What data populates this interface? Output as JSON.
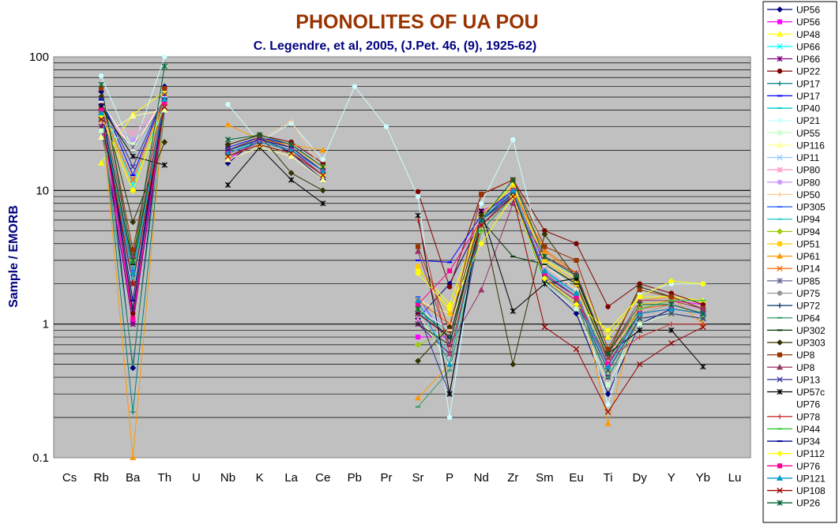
{
  "chart_data": {
    "type": "line",
    "title": "PHONOLITES OF UA POU",
    "subtitle": "C. Legendre, et al, 2005, (J.Pet. 46, (9), 1925-62)",
    "xlabel": "",
    "ylabel": "Sample / EMORB",
    "y_scale": "log",
    "ylim": [
      0.1,
      100
    ],
    "y_ticks": [
      "0.1",
      "1",
      "10",
      "100"
    ],
    "grid": true,
    "legend_position": "right",
    "categories": [
      "Cs",
      "Rb",
      "Ba",
      "Th",
      "U",
      "Nb",
      "K",
      "La",
      "Ce",
      "Pb",
      "Pr",
      "Sr",
      "P",
      "Nd",
      "Zr",
      "Sm",
      "Eu",
      "Ti",
      "Dy",
      "Y",
      "Yb",
      "Lu"
    ],
    "series": [
      {
        "name": "UP56",
        "color": "#000080",
        "marker": "diamond",
        "values": [
          null,
          55,
          0.47,
          60,
          null,
          16,
          25,
          19,
          12,
          null,
          null,
          1.1,
          2.0,
          6.0,
          10,
          2.0,
          1.2,
          0.3,
          1.0,
          1.3,
          1.2,
          null
        ]
      },
      {
        "name": "UP56",
        "color": "#ff00ff",
        "marker": "square",
        "values": [
          null,
          38,
          1.05,
          50,
          null,
          17,
          24,
          20,
          13,
          null,
          null,
          0.8,
          0.8,
          7,
          9,
          2.2,
          1.5,
          0.5,
          1.3,
          1.5,
          1.4,
          null
        ]
      },
      {
        "name": "UP48",
        "color": "#ffff00",
        "marker": "triangle",
        "values": [
          null,
          16,
          37,
          55,
          null,
          19,
          24,
          21,
          14,
          null,
          null,
          2.6,
          1.4,
          6.5,
          11,
          3.0,
          2.2,
          0.8,
          1.6,
          1.6,
          1.5,
          null
        ]
      },
      {
        "name": "UP66",
        "color": "#00ffff",
        "marker": "x",
        "values": [
          null,
          45,
          11,
          45,
          null,
          20,
          25,
          22,
          15,
          null,
          null,
          1.5,
          1.0,
          6,
          10,
          2.5,
          1.6,
          0.45,
          1.2,
          1.3,
          1.2,
          null
        ]
      },
      {
        "name": "UP66",
        "color": "#800080",
        "marker": "star",
        "values": [
          null,
          30,
          1.0,
          42,
          null,
          18,
          23,
          20,
          13,
          null,
          null,
          1.0,
          0.6,
          5,
          9,
          2.1,
          1.4,
          0.4,
          1.1,
          1.2,
          1.1,
          null
        ]
      },
      {
        "name": "UP22",
        "color": "#800000",
        "marker": "circle",
        "values": [
          null,
          50,
          1.2,
          58,
          null,
          22,
          26,
          23,
          16,
          null,
          null,
          9.8,
          1.9,
          9.3,
          12,
          5.0,
          4.0,
          1.35,
          2.0,
          1.7,
          1.4,
          null
        ]
      },
      {
        "name": "UP17",
        "color": "#008080",
        "marker": "plus",
        "values": [
          null,
          42,
          0.22,
          40,
          null,
          20,
          24,
          20,
          14,
          null,
          null,
          1.3,
          0.9,
          6,
          9,
          2.2,
          1.5,
          0.4,
          1.1,
          1.2,
          1.1,
          null
        ]
      },
      {
        "name": "UP17",
        "color": "#0000ff",
        "marker": "dash",
        "values": [
          null,
          48,
          13,
          52,
          null,
          21,
          25,
          22,
          15,
          null,
          null,
          3.0,
          2.9,
          6.5,
          10,
          2.8,
          2.0,
          0.6,
          1.3,
          1.4,
          1.2,
          null
        ]
      },
      {
        "name": "UP40",
        "color": "#00cccc",
        "marker": "dash",
        "values": [
          null,
          35,
          2.0,
          46,
          null,
          19,
          24,
          21,
          14,
          null,
          null,
          1.2,
          0.9,
          6,
          9.5,
          2.4,
          1.6,
          0.45,
          1.2,
          1.3,
          1.2,
          null
        ]
      },
      {
        "name": "UP21",
        "color": "#ccffff",
        "marker": "circle",
        "values": [
          null,
          72,
          20,
          130,
          null,
          44,
          23,
          32,
          17,
          60,
          30,
          9,
          0.2,
          8,
          24,
          2.8,
          1.8,
          0.25,
          1.7,
          2.0,
          2.0,
          null
        ]
      },
      {
        "name": "UP55",
        "color": "#ccffcc",
        "marker": "square",
        "values": [
          null,
          28,
          22,
          44,
          null,
          18,
          22,
          19,
          13,
          null,
          null,
          1.2,
          0.5,
          5,
          9,
          2.0,
          1.3,
          0.35,
          1.0,
          1.2,
          1.1,
          null
        ]
      },
      {
        "name": "UP116",
        "color": "#ffff99",
        "marker": "triangle",
        "values": [
          null,
          25,
          36,
          40,
          null,
          17,
          21,
          18,
          12,
          null,
          null,
          1.5,
          1.2,
          5.5,
          9,
          2.4,
          1.6,
          0.5,
          1.2,
          1.4,
          1.3,
          null
        ]
      },
      {
        "name": "UP11",
        "color": "#99ccff",
        "marker": "x",
        "values": [
          null,
          40,
          18,
          48,
          null,
          19,
          23,
          20,
          14,
          null,
          null,
          1.3,
          1.0,
          6,
          9.5,
          2.5,
          1.7,
          0.5,
          1.3,
          1.4,
          1.3,
          null
        ]
      },
      {
        "name": "UP80",
        "color": "#ff99cc",
        "marker": "star",
        "values": [
          null,
          33,
          27,
          45,
          null,
          18,
          22,
          19,
          13,
          null,
          null,
          1.1,
          0.8,
          5.5,
          9,
          2.2,
          1.5,
          0.45,
          1.2,
          1.3,
          1.2,
          null
        ]
      },
      {
        "name": "UP80",
        "color": "#cc99ff",
        "marker": "circle",
        "values": [
          null,
          36,
          24,
          46,
          null,
          19,
          23,
          20,
          14,
          null,
          null,
          1.4,
          0.9,
          6,
          10,
          2.6,
          1.7,
          0.5,
          1.3,
          1.4,
          1.3,
          null
        ]
      },
      {
        "name": "UP50",
        "color": "#ffcc99",
        "marker": "plus",
        "values": [
          null,
          38,
          21,
          50,
          null,
          20,
          24,
          33,
          14,
          null,
          null,
          1.6,
          1.0,
          6,
          10,
          2.7,
          1.8,
          0.55,
          1.3,
          1.5,
          1.3,
          null
        ]
      },
      {
        "name": "UP305",
        "color": "#3366ff",
        "marker": "dash",
        "values": [
          null,
          40,
          2.5,
          48,
          null,
          20,
          24,
          21,
          14,
          null,
          null,
          1.6,
          0.7,
          6,
          10,
          2.5,
          1.7,
          0.5,
          1.2,
          1.3,
          1.2,
          null
        ]
      },
      {
        "name": "UP94",
        "color": "#33cccc",
        "marker": "dash",
        "values": [
          null,
          37,
          2.2,
          47,
          null,
          19,
          23,
          20,
          14,
          null,
          null,
          1.3,
          0.6,
          5.5,
          9.5,
          2.3,
          1.6,
          0.45,
          1.2,
          1.3,
          1.2,
          null
        ]
      },
      {
        "name": "UP94",
        "color": "#99cc00",
        "marker": "diamond",
        "values": [
          null,
          34,
          3.0,
          44,
          null,
          18,
          22,
          19,
          13,
          null,
          null,
          0.7,
          0.9,
          5,
          9,
          2.2,
          1.5,
          0.45,
          1.1,
          1.2,
          1.1,
          null
        ]
      },
      {
        "name": "UP51",
        "color": "#ffcc00",
        "marker": "square",
        "values": [
          null,
          44,
          10,
          52,
          null,
          20,
          24,
          21,
          15,
          null,
          null,
          2.7,
          1.2,
          6.5,
          10.5,
          3.0,
          2.0,
          0.6,
          1.4,
          1.5,
          1.3,
          null
        ]
      },
      {
        "name": "UP61",
        "color": "#ff9900",
        "marker": "triangle",
        "values": [
          null,
          42,
          0.1,
          46,
          null,
          31,
          24,
          22,
          20,
          null,
          null,
          0.28,
          0.5,
          6,
          10,
          3.5,
          2.3,
          0.18,
          1.5,
          1.6,
          1.0,
          null
        ]
      },
      {
        "name": "UP14",
        "color": "#ff6600",
        "marker": "x",
        "values": [
          null,
          40,
          12,
          50,
          null,
          20,
          24,
          21,
          14,
          null,
          null,
          1.5,
          1.0,
          6,
          10,
          3.6,
          2.4,
          0.6,
          1.3,
          1.4,
          1.2,
          null
        ]
      },
      {
        "name": "UP85",
        "color": "#666699",
        "marker": "star",
        "values": [
          null,
          35,
          21,
          45,
          null,
          19,
          23,
          20,
          14,
          null,
          null,
          1.2,
          0.8,
          5.5,
          9.5,
          2.4,
          1.6,
          0.5,
          1.2,
          1.3,
          1.2,
          null
        ]
      },
      {
        "name": "UP75",
        "color": "#969696",
        "marker": "circle",
        "values": [
          null,
          38,
          20,
          47,
          null,
          19,
          23,
          20,
          14,
          null,
          null,
          1.3,
          0.9,
          6,
          10,
          2.5,
          1.7,
          0.5,
          1.2,
          1.4,
          1.2,
          null
        ]
      },
      {
        "name": "UP72",
        "color": "#003366",
        "marker": "plus",
        "values": [
          null,
          42,
          1.3,
          48,
          null,
          20,
          24,
          21,
          14,
          null,
          null,
          1.2,
          0.8,
          6,
          9.5,
          2.3,
          1.6,
          0.5,
          1.2,
          1.3,
          1.2,
          null
        ]
      },
      {
        "name": "UP64",
        "color": "#339966",
        "marker": "dash",
        "values": [
          null,
          36,
          0.5,
          44,
          null,
          18,
          22,
          19,
          13,
          null,
          null,
          0.24,
          0.45,
          5,
          9,
          2.1,
          1.4,
          0.4,
          1.1,
          1.2,
          1.1,
          null
        ]
      },
      {
        "name": "UP302",
        "color": "#003300",
        "marker": "dash",
        "values": [
          null,
          40,
          2.8,
          46,
          null,
          19,
          23,
          20,
          14,
          null,
          null,
          1.0,
          0.7,
          6,
          3.2,
          2.8,
          2.0,
          0.55,
          1.2,
          1.3,
          1.2,
          null
        ]
      },
      {
        "name": "UP303",
        "color": "#333300",
        "marker": "diamond",
        "values": [
          null,
          50,
          5.8,
          23,
          null,
          22,
          26,
          13.5,
          10,
          null,
          null,
          0.53,
          0.95,
          6.5,
          0.5,
          4.7,
          2.2,
          0.6,
          1.9,
          1.6,
          1.3,
          null
        ]
      },
      {
        "name": "UP8",
        "color": "#993300",
        "marker": "square",
        "values": [
          null,
          58,
          3.6,
          58,
          null,
          20,
          25,
          21,
          14,
          null,
          null,
          3.8,
          0.9,
          9.4,
          12,
          3.8,
          3.0,
          0.65,
          1.8,
          1.6,
          1.3,
          null
        ]
      },
      {
        "name": "UP8",
        "color": "#993366",
        "marker": "triangle",
        "values": [
          null,
          45,
          3.2,
          50,
          null,
          20,
          24,
          21,
          14,
          null,
          null,
          3.5,
          0.7,
          1.8,
          8,
          3.2,
          2.4,
          0.6,
          1.5,
          1.5,
          1.3,
          null
        ]
      },
      {
        "name": "UP13",
        "color": "#333399",
        "marker": "x",
        "values": [
          null,
          48,
          15,
          52,
          null,
          20,
          24,
          21,
          14,
          null,
          null,
          1.2,
          0.3,
          6,
          9,
          2.2,
          1.5,
          0.45,
          1.1,
          1.2,
          1.1,
          null
        ]
      },
      {
        "name": "UP57c",
        "color": "#000000",
        "marker": "star",
        "values": [
          null,
          42,
          18,
          15.5,
          null,
          11,
          21,
          12,
          8,
          null,
          null,
          6.5,
          0.3,
          7,
          1.25,
          2.0,
          2.2,
          0.6,
          0.9,
          0.9,
          0.48,
          null
        ]
      },
      {
        "name": "UP76",
        "color": "#ffffff",
        "marker": "dash",
        "values": [
          null,
          46,
          20,
          50,
          null,
          20,
          24,
          21,
          14,
          null,
          null,
          1.3,
          0.9,
          6,
          10,
          2.4,
          1.6,
          0.5,
          1.2,
          1.3,
          1.2,
          null
        ]
      },
      {
        "name": "UP78",
        "color": "#cc3333",
        "marker": "plus",
        "values": [
          null,
          40,
          2.0,
          46,
          null,
          19,
          23,
          20,
          14,
          null,
          null,
          6.0,
          0.6,
          5.5,
          9,
          2.2,
          1.5,
          0.55,
          0.8,
          1.0,
          1.0,
          null
        ]
      },
      {
        "name": "UP44",
        "color": "#33cc33",
        "marker": "dash",
        "values": [
          null,
          38,
          2.4,
          47,
          null,
          19,
          23,
          20,
          14,
          null,
          null,
          1.3,
          0.8,
          6,
          10,
          2.5,
          1.7,
          0.5,
          1.3,
          1.5,
          1.5,
          null
        ]
      },
      {
        "name": "UP34",
        "color": "#000099",
        "marker": "dash",
        "values": [
          null,
          44,
          1.5,
          49,
          null,
          20,
          24,
          21,
          14,
          null,
          null,
          1.2,
          0.8,
          6,
          10,
          2.4,
          1.6,
          0.5,
          1.2,
          1.3,
          1.2,
          null
        ]
      },
      {
        "name": "UP112",
        "color": "#ffff00",
        "marker": "diamond",
        "values": [
          null,
          36,
          10,
          44,
          null,
          18,
          22,
          19,
          13,
          null,
          null,
          2.4,
          1.3,
          4,
          9,
          2.2,
          1.4,
          0.9,
          1.6,
          2.1,
          2.0,
          null
        ]
      },
      {
        "name": "UP76",
        "color": "#ff0099",
        "marker": "square",
        "values": [
          null,
          40,
          1.1,
          45,
          null,
          19,
          23,
          20,
          14,
          null,
          null,
          1.4,
          2.5,
          6,
          10,
          2.4,
          1.6,
          0.5,
          1.2,
          1.3,
          1.2,
          null
        ]
      },
      {
        "name": "UP121",
        "color": "#0099cc",
        "marker": "triangle",
        "values": [
          null,
          38,
          2.4,
          48,
          null,
          19,
          23,
          20,
          14,
          null,
          null,
          1.5,
          0.5,
          6,
          10,
          2.5,
          1.7,
          0.48,
          1.2,
          1.3,
          1.2,
          null
        ]
      },
      {
        "name": "UP108",
        "color": "#990000",
        "marker": "x",
        "values": [
          null,
          34,
          2.0,
          42,
          null,
          18,
          22,
          19,
          13,
          null,
          null,
          1.2,
          0.8,
          5.5,
          9,
          0.95,
          0.65,
          0.22,
          0.5,
          0.72,
          0.95,
          null
        ]
      },
      {
        "name": "UP26",
        "color": "#006633",
        "marker": "star",
        "values": [
          null,
          62,
          3.0,
          85,
          null,
          24,
          26,
          22,
          15,
          null,
          null,
          1.3,
          0.8,
          6,
          12,
          3.2,
          2.3,
          0.6,
          1.4,
          1.4,
          1.2,
          null
        ]
      }
    ]
  }
}
